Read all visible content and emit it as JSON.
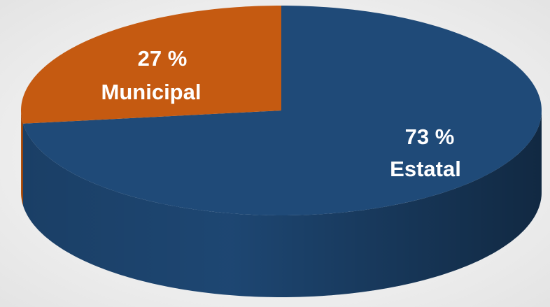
{
  "chart_data": {
    "type": "pie3d",
    "categories": [
      "Estatal",
      "Municipal"
    ],
    "values": [
      73,
      27
    ],
    "value_labels": [
      "73 %",
      "27 %"
    ],
    "colors": [
      "#1f4a78",
      "#c55a11"
    ]
  }
}
